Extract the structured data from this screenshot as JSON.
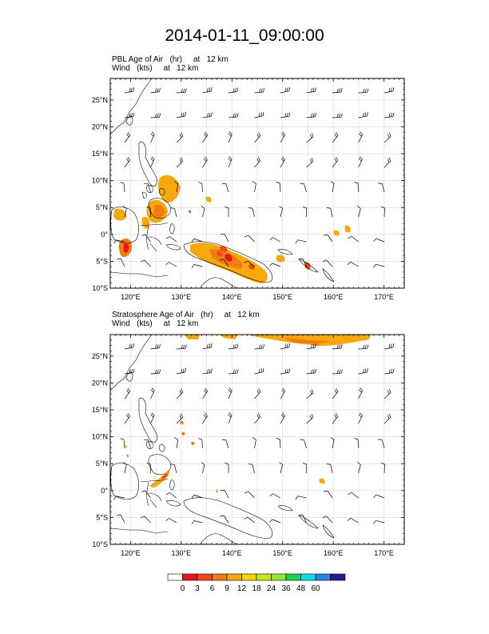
{
  "title": "2014-01-11_09:00:00",
  "panels": [
    {
      "id": "pbl",
      "line1": "PBL Age of Air   (hr)     at   12 km",
      "line2": "Wind   (kts)     at   12 km"
    },
    {
      "id": "strat",
      "line1": "Stratosphere Age of Air   (hr)     at   12 km",
      "line2": "Wind   (kts)     at   12 km"
    }
  ],
  "lat_ticks": [
    "25°N",
    "20°N",
    "15°N",
    "10°N",
    "5°N",
    "0°",
    "5°S",
    "10°S"
  ],
  "lat_values": [
    25,
    20,
    15,
    10,
    5,
    0,
    -5,
    -10
  ],
  "lon_ticks": [
    "120°E",
    "130°E",
    "140°E",
    "150°E",
    "160°E",
    "170°E"
  ],
  "lon_values": [
    120,
    130,
    140,
    150,
    160,
    170
  ],
  "extent": {
    "lon_min": 116,
    "lon_max": 174,
    "lat_min": -10,
    "lat_max": 29
  },
  "colorbar": {
    "labels": [
      "0",
      "3",
      "6",
      "9",
      "12",
      "18",
      "24",
      "36",
      "48",
      "60"
    ],
    "colors": [
      "#ffffff",
      "#e8141e",
      "#f04a14",
      "#f07d14",
      "#f7a80f",
      "#f5d40c",
      "#c8e61e",
      "#96e632",
      "#20d050",
      "#17d9e6",
      "#2f80e6",
      "#1e1e8c"
    ]
  }
}
